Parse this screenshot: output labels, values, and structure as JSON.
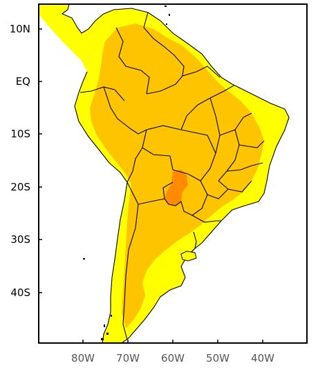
{
  "map": {
    "lat_labels": [
      "10N",
      "EQ",
      "10S",
      "20S",
      "30S",
      "40S"
    ],
    "lon_labels": [
      "80W",
      "70W",
      "60W",
      "50W",
      "40W"
    ],
    "lat_range": [
      "15N",
      "50S"
    ],
    "lon_range": [
      "90W",
      "30W"
    ],
    "colors": {
      "ocean": "#ffffff",
      "low": "#ffff00",
      "mid": "#ffc400",
      "high": "#ff8c00",
      "border": "#000000"
    }
  }
}
